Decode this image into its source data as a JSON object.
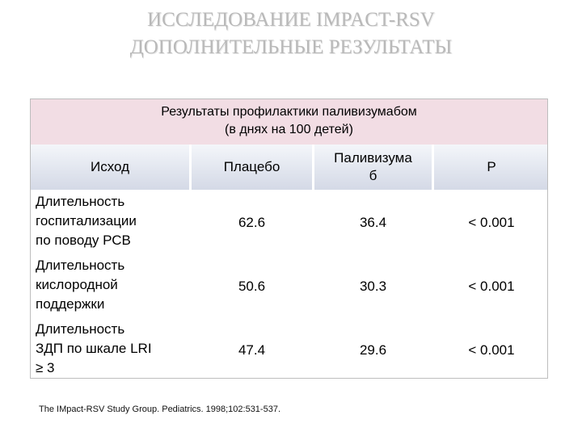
{
  "title": {
    "line1": "ИССЛЕДОВАНИЕ IMPACT-RSV",
    "line2": "ДОПОЛНИТЕЛЬНЫЕ РЕЗУЛЬТАТЫ"
  },
  "table": {
    "caption_line1": "Результаты профилактики паливизумабом",
    "caption_line2": "(в днях на 100 детей)",
    "headers": {
      "outcome": "Исход",
      "placebo": "Плацебо",
      "palivizumab_line1": "Паливизума",
      "palivizumab_line2": "б",
      "p": "P"
    },
    "rows": [
      {
        "label_lines": [
          "Длительность",
          "госпитализации",
          "по поводу РСВ"
        ],
        "placebo": "62.6",
        "palivizumab": "36.4",
        "p": "< 0.001"
      },
      {
        "label_lines": [
          "Длительность",
          "кислородной",
          "поддержки"
        ],
        "placebo": "50.6",
        "palivizumab": "30.3",
        "p": "< 0.001"
      },
      {
        "label_lines": [
          "Длительность",
          "ЗДП по шкале LRI",
          "≥ 3"
        ],
        "placebo": "47.4",
        "palivizumab": "29.6",
        "p": "< 0.001"
      }
    ]
  },
  "footnote": "The IMpact-RSV Study Group. Pediatrics. 1998;102:531-537."
}
